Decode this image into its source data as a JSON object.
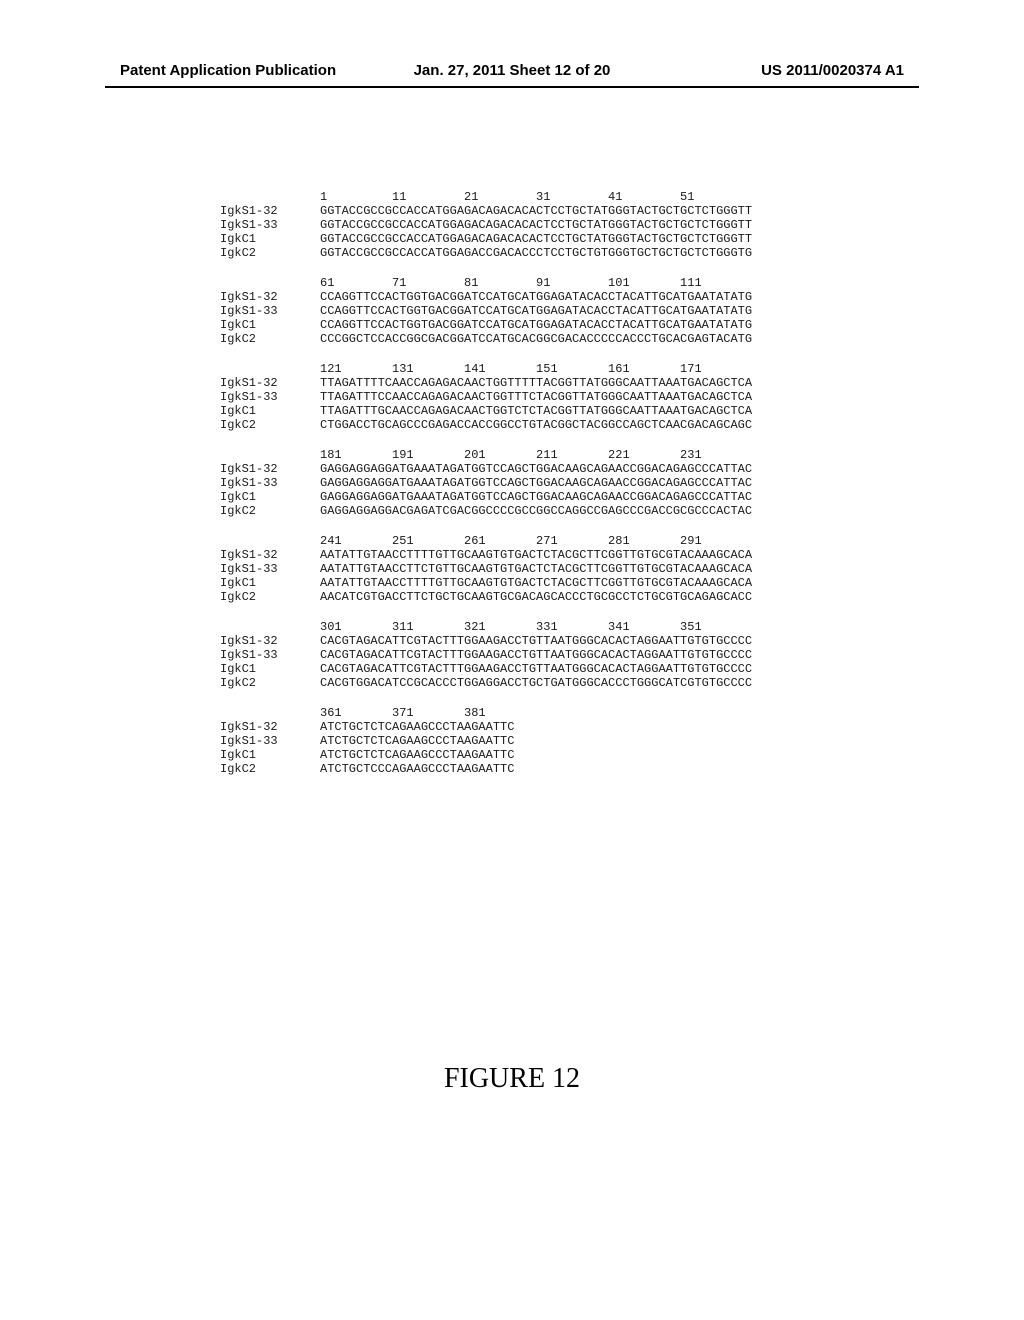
{
  "header": {
    "left": "Patent Application Publication",
    "center": "Jan. 27, 2011  Sheet 12 of 20",
    "right": "US 2011/0020374 A1"
  },
  "figure_caption": "FIGURE 12",
  "alignment": {
    "labels": [
      "IgkS1-32",
      "IgkS1-33",
      "IgkC1",
      "IgkC2"
    ],
    "blocks": [
      {
        "ruler_positions": [
          "1",
          "11",
          "21",
          "31",
          "41",
          "51"
        ],
        "sequences": [
          "GGTACCGCCGCCACCATGGAGACAGACACACTCCTGCTATGGGTACTGCTGCTCTGGGTT",
          "GGTACCGCCGCCACCATGGAGACAGACACACTCCTGCTATGGGTACTGCTGCTCTGGGTT",
          "GGTACCGCCGCCACCATGGAGACAGACACACTCCTGCTATGGGTACTGCTGCTCTGGGTT",
          "GGTACCGCCGCCACCATGGAGACCGACACCCTCCTGCTGTGGGTGCTGCTGCTCTGGGTG"
        ]
      },
      {
        "ruler_positions": [
          "61",
          "71",
          "81",
          "91",
          "101",
          "111"
        ],
        "sequences": [
          "CCAGGTTCCACTGGTGACGGATCCATGCATGGAGATACACCTACATTGCATGAATATATG",
          "CCAGGTTCCACTGGTGACGGATCCATGCATGGAGATACACCTACATTGCATGAATATATG",
          "CCAGGTTCCACTGGTGACGGATCCATGCATGGAGATACACCTACATTGCATGAATATATG",
          "CCCGGCTCCACCGGCGACGGATCCATGCACGGCGACACCCCCACCCTGCACGAGTACATG"
        ]
      },
      {
        "ruler_positions": [
          "121",
          "131",
          "141",
          "151",
          "161",
          "171"
        ],
        "sequences": [
          "TTAGATTTTCAACCAGAGACAACTGGTTTTTACGGTTATGGGCAATTAAATGACAGCTCA",
          "TTAGATTTCCAACCAGAGACAACTGGTTTCTACGGTTATGGGCAATTAAATGACAGCTCA",
          "TTAGATTTGCAACCAGAGACAACTGGTCTCTACGGTTATGGGCAATTAAATGACAGCTCA",
          "CTGGACCTGCAGCCCGAGACCACCGGCCTGTACGGCTACGGCCAGCTCAACGACAGCAGC"
        ]
      },
      {
        "ruler_positions": [
          "181",
          "191",
          "201",
          "211",
          "221",
          "231"
        ],
        "sequences": [
          "GAGGAGGAGGATGAAATAGATGGTCCAGCTGGACAAGCAGAACCGGACAGAGCCCATTAC",
          "GAGGAGGAGGATGAAATAGATGGTCCAGCTGGACAAGCAGAACCGGACAGAGCCCATTAC",
          "GAGGAGGAGGATGAAATAGATGGTCCAGCTGGACAAGCAGAACCGGACAGAGCCCATTAC",
          "GAGGAGGAGGACGAGATCGACGGCCCCGCCGGCCAGGCCGAGCCCGACCGCGCCCACTAC"
        ]
      },
      {
        "ruler_positions": [
          "241",
          "251",
          "261",
          "271",
          "281",
          "291"
        ],
        "sequences": [
          "AATATTGTAACCTTTTGTTGCAAGTGTGACTCTACGCTTCGGTTGTGCGTACAAAGCACA",
          "AATATTGTAACCTTCTGTTGCAAGTGTGACTCTACGCTTCGGTTGTGCGTACAAAGCACA",
          "AATATTGTAACCTTTTGTTGCAAGTGTGACTCTACGCTTCGGTTGTGCGTACAAAGCACA",
          "AACATCGTGACCTTCTGCTGCAAGTGCGACAGCACCCTGCGCCTCTGCGTGCAGAGCACC"
        ]
      },
      {
        "ruler_positions": [
          "301",
          "311",
          "321",
          "331",
          "341",
          "351"
        ],
        "sequences": [
          "CACGTAGACATTCGTACTTTGGAAGACCTGTTAATGGGCACACTAGGAATTGTGTGCCCC",
          "CACGTAGACATTCGTACTTTGGAAGACCTGTTAATGGGCACACTAGGAATTGTGTGCCCC",
          "CACGTAGACATTCGTACTTTGGAAGACCTGTTAATGGGCACACTAGGAATTGTGTGCCCC",
          "CACGTGGACATCCGCACCCTGGAGGACCTGCTGATGGGCACCCTGGGCATCGTGTGCCCC"
        ]
      },
      {
        "ruler_positions": [
          "361",
          "371",
          "381"
        ],
        "sequences": [
          "ATCTGCTCTCAGAAGCCCTAAGAATTC",
          "ATCTGCTCTCAGAAGCCCTAAGAATTC",
          "ATCTGCTCTCAGAAGCCCTAAGAATTC",
          "ATCTGCTCCCAGAAGCCCTAAGAATTC"
        ]
      }
    ]
  }
}
